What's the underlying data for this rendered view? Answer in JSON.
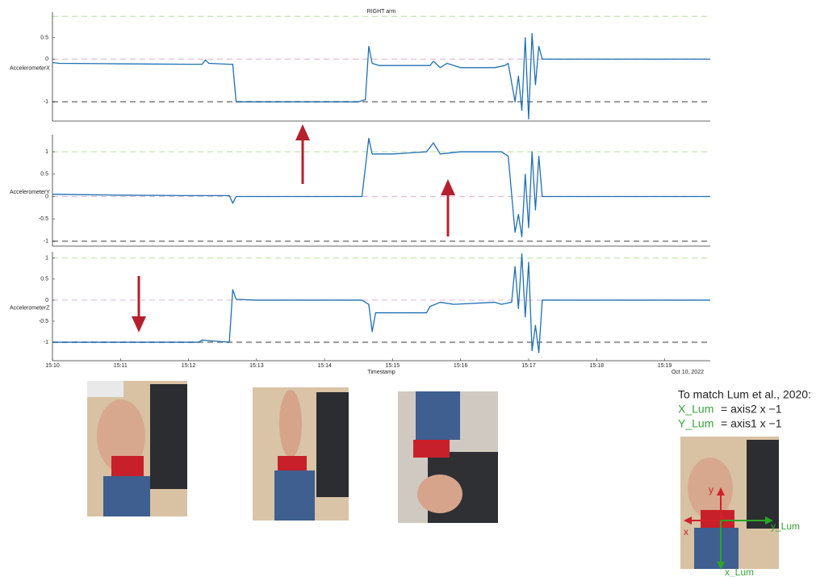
{
  "chart_data": [
    {
      "type": "line",
      "title": "RIGHT arm",
      "ylabel": "AccelerometerX",
      "color": "#1f6fb4",
      "xlim": [
        910,
        919.67
      ],
      "ylim": [
        -1.45,
        1.1
      ],
      "yticks": [
        0.5,
        0,
        -1
      ],
      "hlines": [
        {
          "value": 1,
          "color": "#bfe0a8"
        },
        {
          "value": 0,
          "color": "#e3bcd9"
        },
        {
          "value": -1,
          "color": "#9a9a9a"
        }
      ],
      "x": [
        910,
        910.1,
        911,
        912,
        912.2,
        912.25,
        912.3,
        912.6,
        912.65,
        912.7,
        913.5,
        914.5,
        914.6,
        914.65,
        914.7,
        914.8,
        915.2,
        915.55,
        915.6,
        915.7,
        915.8,
        916,
        916.5,
        916.65,
        916.7,
        916.8,
        916.85,
        916.9,
        916.95,
        917.0,
        917.05,
        917.1,
        917.15,
        917.2,
        919.67
      ],
      "values": [
        -0.08,
        -0.1,
        -0.11,
        -0.12,
        -0.12,
        -0.02,
        -0.1,
        -0.12,
        -0.12,
        -1.0,
        -1.0,
        -1.0,
        -0.95,
        0.3,
        -0.1,
        -0.15,
        -0.15,
        -0.15,
        -0.05,
        -0.2,
        -0.1,
        -0.2,
        -0.2,
        -0.15,
        -0.1,
        -1.0,
        -0.4,
        -1.2,
        0.5,
        -1.4,
        0.6,
        -0.6,
        0.3,
        0,
        0
      ]
    },
    {
      "type": "line",
      "ylabel": "AccelerometerY",
      "color": "#1f6fb4",
      "xlim": [
        910,
        919.67
      ],
      "ylim": [
        -1.11,
        1.38
      ],
      "yticks": [
        1,
        0.5,
        0,
        -0.5,
        -1
      ],
      "hlines": [
        {
          "value": 1,
          "color": "#bfe0a8"
        },
        {
          "value": 0,
          "color": "#e3bcd9"
        },
        {
          "value": -1,
          "color": "#9a9a9a"
        }
      ],
      "x": [
        910,
        911,
        912,
        912.6,
        912.65,
        912.7,
        913.5,
        914.55,
        914.65,
        914.7,
        915,
        915.5,
        915.6,
        915.7,
        916,
        916.6,
        916.7,
        916.8,
        916.85,
        916.9,
        916.95,
        917.0,
        917.05,
        917.1,
        917.15,
        917.2,
        919.67
      ],
      "values": [
        0.05,
        0.03,
        0.02,
        0.02,
        -0.15,
        0,
        0,
        0,
        1.3,
        0.95,
        0.95,
        1.0,
        1.2,
        0.95,
        1.0,
        1.0,
        0.9,
        -0.8,
        -0.4,
        -0.9,
        0.5,
        -0.7,
        1.0,
        -0.3,
        0.9,
        0,
        0
      ]
    },
    {
      "type": "line",
      "ylabel": "AccelerometerZ",
      "color": "#1f6fb4",
      "xlabel": "Timestamp",
      "date": "Oct 10, 2022",
      "xlim": [
        910,
        919.67
      ],
      "ylim": [
        -1.44,
        1.15
      ],
      "yticks": [
        1,
        0.5,
        0,
        -0.5,
        -1
      ],
      "xticks": [
        {
          "value": 910,
          "label": "15:10"
        },
        {
          "value": 911,
          "label": "15:11"
        },
        {
          "value": 912,
          "label": "15:12"
        },
        {
          "value": 913,
          "label": "15:13"
        },
        {
          "value": 914,
          "label": "15:14"
        },
        {
          "value": 915,
          "label": "15:15"
        },
        {
          "value": 916,
          "label": "15:16"
        },
        {
          "value": 917,
          "label": "15:17"
        },
        {
          "value": 918,
          "label": "15:18"
        },
        {
          "value": 919,
          "label": "15:19"
        }
      ],
      "hlines": [
        {
          "value": 1,
          "color": "#bfe0a8"
        },
        {
          "value": 0,
          "color": "#e3bcd9"
        },
        {
          "value": -1,
          "color": "#9a9a9a"
        }
      ],
      "x": [
        910,
        911,
        912,
        912.15,
        912.2,
        912.6,
        912.65,
        912.7,
        913,
        914,
        914.55,
        914.65,
        914.7,
        914.75,
        915.2,
        915.5,
        915.55,
        915.7,
        915.9,
        916.5,
        916.6,
        916.75,
        916.8,
        916.85,
        916.9,
        916.95,
        917.0,
        917.05,
        917.1,
        917.15,
        917.2,
        919.67
      ],
      "values": [
        -1.0,
        -1.0,
        -1.0,
        -1.0,
        -0.95,
        -1.0,
        0.25,
        0.02,
        0,
        0,
        0,
        -0.1,
        -0.75,
        -0.3,
        -0.3,
        -0.3,
        -0.15,
        -0.05,
        -0.1,
        -0.05,
        -0.1,
        -0.05,
        0.8,
        -0.2,
        1.1,
        -0.4,
        0.9,
        -1.2,
        -0.6,
        -1.25,
        0,
        0
      ]
    }
  ],
  "lum_note": {
    "title": "To match Lum et al., 2020:",
    "x_name": "X_Lum",
    "x_rule": "= axis2  x −1",
    "y_name": "Y_Lum",
    "y_rule": "= axis1 x −1"
  },
  "photo_labels": {
    "y": "y",
    "x": "x",
    "y_lum": "y_Lum",
    "x_lum": "x_Lum"
  }
}
